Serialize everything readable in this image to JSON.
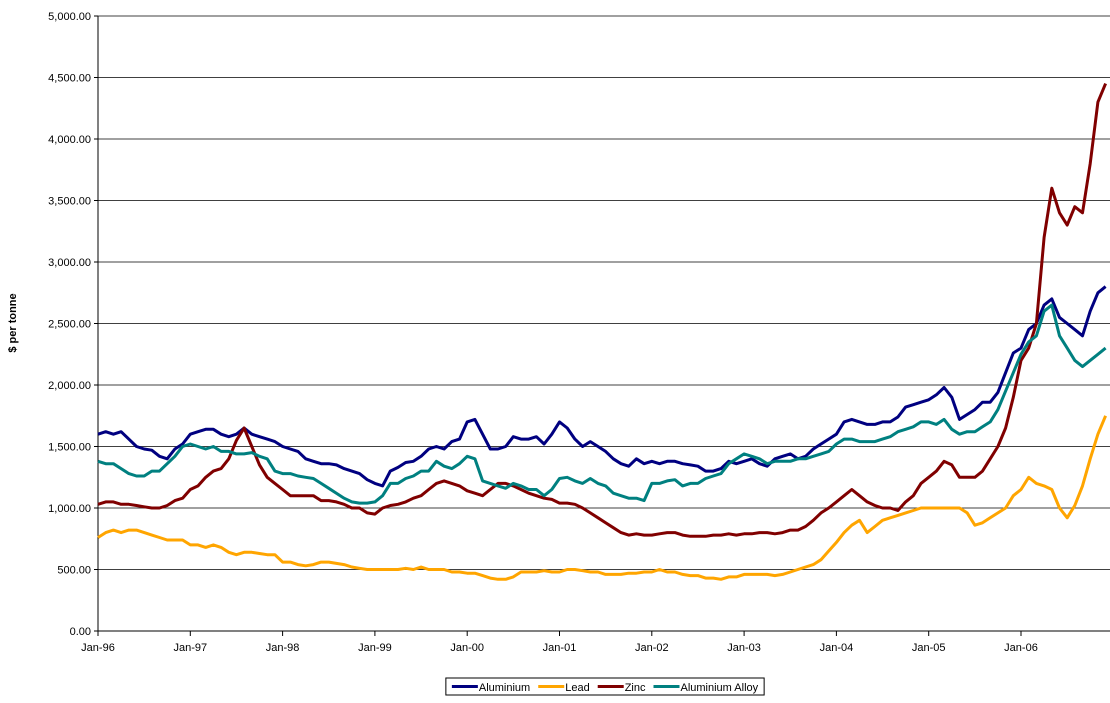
{
  "chart_data": {
    "type": "line",
    "y_label": "$ per tonne",
    "categories": [
      "Jan-96",
      null,
      null,
      null,
      null,
      null,
      null,
      null,
      null,
      null,
      null,
      null,
      "Jan-97",
      null,
      null,
      null,
      null,
      null,
      null,
      null,
      null,
      null,
      null,
      null,
      "Jan-98",
      null,
      null,
      null,
      null,
      null,
      null,
      null,
      null,
      null,
      null,
      null,
      "Jan-99",
      null,
      null,
      null,
      null,
      null,
      null,
      null,
      null,
      null,
      null,
      null,
      "Jan-00",
      null,
      null,
      null,
      null,
      null,
      null,
      null,
      null,
      null,
      null,
      null,
      "Jan-01",
      null,
      null,
      null,
      null,
      null,
      null,
      null,
      null,
      null,
      null,
      null,
      "Jan-02",
      null,
      null,
      null,
      null,
      null,
      null,
      null,
      null,
      null,
      null,
      null,
      "Jan-03",
      null,
      null,
      null,
      null,
      null,
      null,
      null,
      null,
      null,
      null,
      null,
      "Jan-04",
      null,
      null,
      null,
      null,
      null,
      null,
      null,
      null,
      null,
      null,
      null,
      "Jan-05",
      null,
      null,
      null,
      null,
      null,
      null,
      null,
      null,
      null,
      null,
      null,
      "Jan-06",
      null,
      null,
      null,
      null,
      null,
      null,
      null,
      null,
      null,
      null,
      null
    ],
    "series": [
      {
        "name": "Aluminium",
        "color": "#000080",
        "values": [
          1600,
          1620,
          1600,
          1620,
          1560,
          1500,
          1480,
          1470,
          1420,
          1400,
          1480,
          1520,
          1600,
          1620,
          1640,
          1640,
          1600,
          1580,
          1600,
          1650,
          1600,
          1580,
          1560,
          1540,
          1500,
          1480,
          1460,
          1400,
          1380,
          1360,
          1360,
          1350,
          1320,
          1300,
          1280,
          1230,
          1200,
          1180,
          1300,
          1330,
          1370,
          1380,
          1420,
          1480,
          1500,
          1480,
          1540,
          1560,
          1700,
          1720,
          1600,
          1480,
          1480,
          1500,
          1580,
          1560,
          1560,
          1580,
          1520,
          1600,
          1700,
          1650,
          1560,
          1500,
          1540,
          1500,
          1460,
          1400,
          1360,
          1340,
          1400,
          1360,
          1380,
          1360,
          1380,
          1380,
          1360,
          1350,
          1340,
          1300,
          1300,
          1320,
          1380,
          1360,
          1380,
          1400,
          1360,
          1340,
          1400,
          1420,
          1440,
          1400,
          1420,
          1480,
          1520,
          1560,
          1600,
          1700,
          1720,
          1700,
          1680,
          1680,
          1700,
          1700,
          1740,
          1820,
          1840,
          1860,
          1880,
          1920,
          1980,
          1900,
          1720,
          1760,
          1800,
          1860,
          1860,
          1940,
          2100,
          2260,
          2300,
          2450,
          2500,
          2650,
          2700,
          2550,
          2500,
          2450,
          2400,
          2600,
          2750,
          2800
        ]
      },
      {
        "name": "Lead",
        "color": "#ffa500",
        "values": [
          760,
          800,
          820,
          800,
          820,
          820,
          800,
          780,
          760,
          740,
          740,
          740,
          700,
          700,
          680,
          700,
          680,
          640,
          620,
          640,
          640,
          630,
          620,
          620,
          560,
          560,
          540,
          530,
          540,
          560,
          560,
          550,
          540,
          520,
          510,
          500,
          500,
          500,
          500,
          500,
          510,
          500,
          520,
          500,
          500,
          500,
          480,
          480,
          470,
          470,
          450,
          430,
          420,
          420,
          440,
          480,
          480,
          480,
          490,
          480,
          480,
          500,
          500,
          490,
          480,
          480,
          460,
          460,
          460,
          470,
          470,
          480,
          480,
          500,
          480,
          480,
          460,
          450,
          450,
          430,
          430,
          420,
          440,
          440,
          460,
          460,
          460,
          460,
          450,
          460,
          480,
          500,
          520,
          540,
          580,
          650,
          720,
          800,
          860,
          900,
          800,
          850,
          900,
          920,
          940,
          960,
          980,
          1000,
          1000,
          1000,
          1000,
          1000,
          1000,
          960,
          860,
          880,
          920,
          960,
          1000,
          1100,
          1150,
          1250,
          1200,
          1180,
          1150,
          1000,
          920,
          1020,
          1180,
          1400,
          1600,
          1750
        ]
      },
      {
        "name": "Zinc",
        "color": "#800000",
        "values": [
          1030,
          1050,
          1050,
          1030,
          1030,
          1020,
          1010,
          1000,
          1000,
          1020,
          1060,
          1080,
          1150,
          1180,
          1250,
          1300,
          1320,
          1400,
          1550,
          1650,
          1500,
          1350,
          1250,
          1200,
          1150,
          1100,
          1100,
          1100,
          1100,
          1060,
          1060,
          1050,
          1030,
          1000,
          1000,
          960,
          950,
          1000,
          1020,
          1030,
          1050,
          1080,
          1100,
          1150,
          1200,
          1220,
          1200,
          1180,
          1140,
          1120,
          1100,
          1150,
          1200,
          1200,
          1180,
          1150,
          1120,
          1100,
          1080,
          1070,
          1040,
          1040,
          1030,
          1000,
          960,
          920,
          880,
          840,
          800,
          780,
          790,
          780,
          780,
          790,
          800,
          800,
          780,
          770,
          770,
          770,
          780,
          780,
          790,
          780,
          790,
          790,
          800,
          800,
          790,
          800,
          820,
          820,
          850,
          900,
          960,
          1000,
          1050,
          1100,
          1150,
          1100,
          1050,
          1020,
          1000,
          1000,
          980,
          1050,
          1100,
          1200,
          1250,
          1300,
          1380,
          1350,
          1250,
          1250,
          1250,
          1300,
          1400,
          1500,
          1650,
          1900,
          2200,
          2300,
          2500,
          3200,
          3600,
          3400,
          3300,
          3450,
          3400,
          3800,
          4300,
          4450
        ]
      },
      {
        "name": "Aluminium Alloy",
        "color": "#008080",
        "values": [
          1380,
          1360,
          1360,
          1320,
          1280,
          1260,
          1260,
          1300,
          1300,
          1360,
          1420,
          1500,
          1520,
          1500,
          1480,
          1500,
          1460,
          1460,
          1440,
          1440,
          1450,
          1420,
          1400,
          1300,
          1280,
          1280,
          1260,
          1250,
          1240,
          1200,
          1160,
          1120,
          1080,
          1050,
          1040,
          1040,
          1050,
          1100,
          1200,
          1200,
          1240,
          1260,
          1300,
          1300,
          1380,
          1340,
          1320,
          1360,
          1420,
          1400,
          1220,
          1200,
          1180,
          1160,
          1200,
          1180,
          1150,
          1150,
          1100,
          1150,
          1240,
          1250,
          1220,
          1200,
          1240,
          1200,
          1180,
          1120,
          1100,
          1080,
          1080,
          1060,
          1200,
          1200,
          1220,
          1230,
          1180,
          1200,
          1200,
          1240,
          1260,
          1280,
          1360,
          1400,
          1440,
          1420,
          1400,
          1360,
          1380,
          1380,
          1380,
          1400,
          1400,
          1420,
          1440,
          1460,
          1520,
          1560,
          1560,
          1540,
          1540,
          1540,
          1560,
          1580,
          1620,
          1640,
          1660,
          1700,
          1700,
          1680,
          1720,
          1640,
          1600,
          1620,
          1620,
          1660,
          1700,
          1800,
          1950,
          2100,
          2250,
          2350,
          2400,
          2600,
          2650,
          2400,
          2300,
          2200,
          2150,
          2200,
          2250,
          2300
        ]
      }
    ],
    "ylim": [
      0,
      5000
    ],
    "yticks": [
      {
        "value": 0,
        "label": "0.00"
      },
      {
        "value": 500,
        "label": "500.00"
      },
      {
        "value": 1000,
        "label": "1,000.00"
      },
      {
        "value": 1500,
        "label": "1,500.00"
      },
      {
        "value": 2000,
        "label": "2,000.00"
      },
      {
        "value": 2500,
        "label": "2,500.00"
      },
      {
        "value": 3000,
        "label": "3,000.00"
      },
      {
        "value": 3500,
        "label": "3,500.00"
      },
      {
        "value": 4000,
        "label": "4,000.00"
      },
      {
        "value": 4500,
        "label": "4,500.00"
      },
      {
        "value": 5000,
        "label": "5,000.00"
      }
    ],
    "grid": true,
    "legend": "bottom"
  }
}
